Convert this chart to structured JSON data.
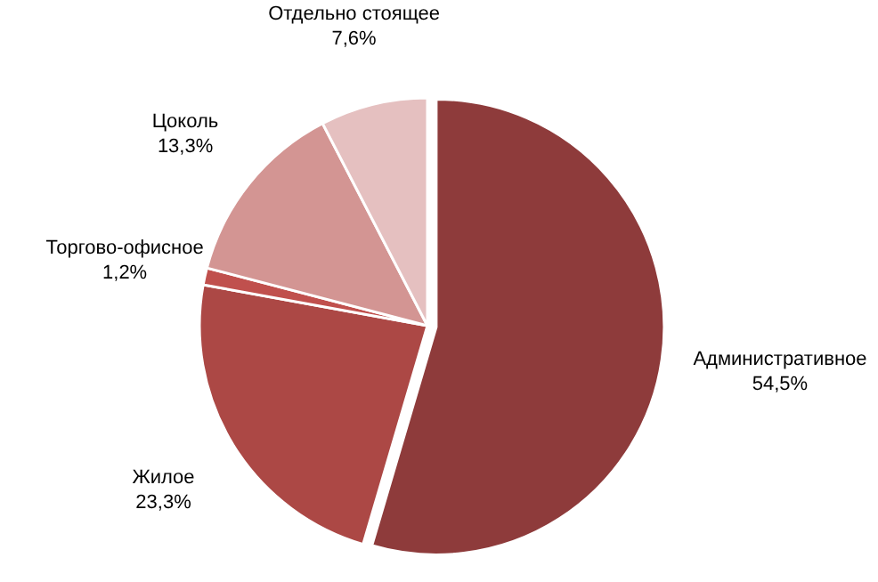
{
  "chart_data": {
    "type": "pie",
    "categories": [
      "Административное",
      "Жилое",
      "Торгово-офисное",
      "Цоколь",
      "Отдельно стоящее"
    ],
    "values": [
      54.5,
      23.3,
      1.2,
      13.3,
      7.6
    ],
    "value_labels": [
      "54,5%",
      "23,3%",
      "1,2%",
      "13,3%",
      "7,6%"
    ],
    "colors": [
      "#8e3b3b",
      "#ac4845",
      "#c0504d",
      "#d39593",
      "#e5c0c0"
    ]
  }
}
